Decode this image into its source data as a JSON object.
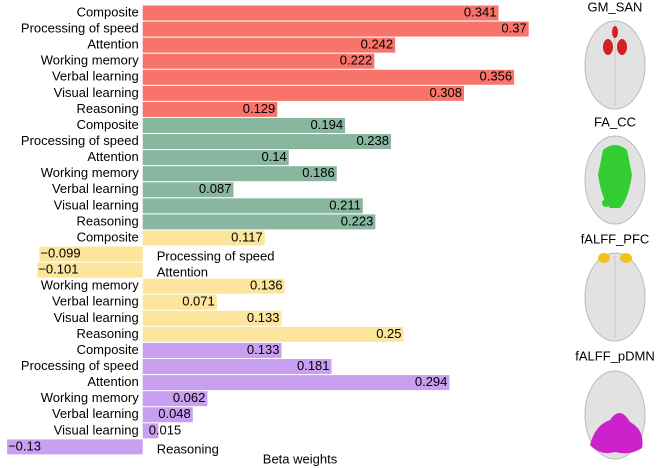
{
  "chart_data": {
    "type": "bar",
    "orientation": "horizontal",
    "xlabel": "Beta weights",
    "categories": [
      "Composite",
      "Processing of speed",
      "Attention",
      "Working memory",
      "Verbal learning",
      "Visual learning",
      "Reasoning"
    ],
    "series": [
      {
        "name": "GM_SAN",
        "color": "#f8746b",
        "values": [
          0.341,
          0.37,
          0.242,
          0.222,
          0.356,
          0.308,
          0.129
        ],
        "value_labels": [
          "0.341",
          "0.37",
          "0.242",
          "0.222",
          "0.356",
          "0.308",
          "0.129"
        ]
      },
      {
        "name": "FA_CC",
        "color": "#89b69f",
        "values": [
          0.194,
          0.238,
          0.14,
          0.186,
          0.087,
          0.211,
          0.223
        ],
        "value_labels": [
          "0.194",
          "0.238",
          "0.14",
          "0.186",
          "0.087",
          "0.211",
          "0.223"
        ]
      },
      {
        "name": "fALFF_PFC",
        "color": "#fde59b",
        "values": [
          0.117,
          -0.099,
          -0.101,
          0.136,
          0.071,
          0.133,
          0.25
        ],
        "value_labels": [
          "0.117",
          "−0.099",
          "−0.101",
          "0.136",
          "0.071",
          "0.133",
          "0.25"
        ]
      },
      {
        "name": "fALFF_pDMN",
        "color": "#c99ff1",
        "values": [
          0.133,
          0.181,
          0.294,
          0.062,
          0.048,
          0.015,
          -0.13
        ],
        "value_labels": [
          "0.133",
          "0.181",
          "0.294",
          "0.062",
          "0.048",
          "0.015",
          "−0.13"
        ]
      }
    ],
    "xlim": [
      -0.132,
      0.4
    ]
  }
}
